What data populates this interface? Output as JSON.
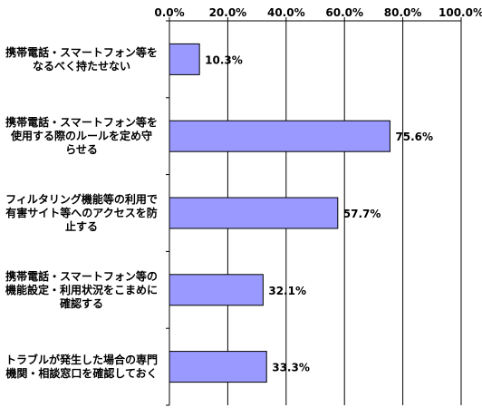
{
  "chart_data": {
    "type": "bar",
    "orientation": "horizontal",
    "categories": [
      [
        "携帯電話・スマートフォン等を",
        "なるべく持たせない"
      ],
      [
        "携帯電話・スマートフォン等を",
        "使用する際のルールを定め守",
        "らせる"
      ],
      [
        "フィルタリング機能等の利用で",
        "有害サイト等へのアクセスを防",
        "止する"
      ],
      [
        "携帯電話・スマートフォン等の",
        "機能設定・利用状況をこまめに",
        "確認する"
      ],
      [
        "トラブルが発生した場合の専門",
        "機関・相談窓口を確認しておく"
      ]
    ],
    "values": [
      10.3,
      75.6,
      57.7,
      32.1,
      33.3
    ],
    "data_labels": [
      "10.3%",
      "75.6%",
      "57.7%",
      "32.1%",
      "33.3%"
    ],
    "xlim": [
      0,
      100
    ],
    "xticks": [
      "0.0%",
      "20.0%",
      "40.0%",
      "60.0%",
      "80.0%",
      "100.0%"
    ],
    "xaxis_position": "top",
    "grid": true,
    "legend": "none",
    "colors": {
      "bar_fill": "#9999ff",
      "bar_stroke": "#000000",
      "grid": "#000000",
      "text": "#000000"
    }
  }
}
